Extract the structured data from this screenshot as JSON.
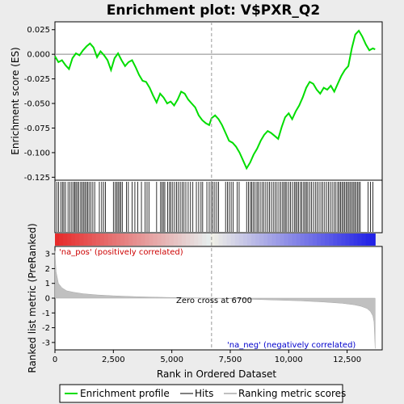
{
  "chart_data": {
    "type": "line",
    "title": "Enrichment plot: V$PXR_Q2",
    "x_axis": {
      "label": "Rank in Ordered Dataset",
      "range": [
        0,
        14000
      ],
      "ticks": [
        0,
        2500,
        5000,
        7500,
        10000,
        12500
      ],
      "tick_labels": [
        "0",
        "2,500",
        "5,000",
        "7,500",
        "10,000",
        "12,500"
      ]
    },
    "es_panel": {
      "ylabel": "Enrichment score (ES)",
      "ylim": [
        -0.128,
        0.033
      ],
      "ticks": [
        0.025,
        0.0,
        -0.025,
        -0.05,
        -0.075,
        -0.1,
        -0.125
      ],
      "tick_labels": [
        "0.025",
        "0.000",
        "-0.025",
        "-0.050",
        "-0.075",
        "-0.100",
        "-0.125"
      ],
      "series": [
        {
          "name": "Enrichment profile",
          "color": "#00dd00",
          "x": [
            0,
            150,
            300,
            450,
            600,
            750,
            900,
            1050,
            1200,
            1350,
            1500,
            1650,
            1800,
            1950,
            2100,
            2250,
            2400,
            2550,
            2700,
            2850,
            3000,
            3150,
            3300,
            3450,
            3600,
            3750,
            3900,
            4050,
            4200,
            4350,
            4500,
            4650,
            4800,
            4950,
            5100,
            5250,
            5400,
            5550,
            5700,
            5850,
            6000,
            6150,
            6300,
            6450,
            6600,
            6700,
            6850,
            7000,
            7150,
            7300,
            7450,
            7600,
            7750,
            7900,
            8050,
            8200,
            8350,
            8500,
            8650,
            8800,
            8950,
            9100,
            9250,
            9400,
            9550,
            9700,
            9850,
            10000,
            10150,
            10300,
            10450,
            10600,
            10750,
            10900,
            11050,
            11200,
            11350,
            11500,
            11650,
            11800,
            11950,
            12100,
            12250,
            12400,
            12550,
            12700,
            12850,
            13000,
            13150,
            13300,
            13450,
            13600,
            13700
          ],
          "y": [
            -0.002,
            -0.008,
            -0.006,
            -0.011,
            -0.015,
            -0.004,
            0.001,
            -0.001,
            0.004,
            0.008,
            0.011,
            0.007,
            -0.003,
            0.003,
            -0.001,
            -0.006,
            -0.016,
            -0.004,
            0.001,
            -0.006,
            -0.012,
            -0.008,
            -0.006,
            -0.013,
            -0.021,
            -0.027,
            -0.028,
            -0.034,
            -0.042,
            -0.049,
            -0.04,
            -0.044,
            -0.05,
            -0.048,
            -0.052,
            -0.046,
            -0.038,
            -0.04,
            -0.046,
            -0.05,
            -0.054,
            -0.062,
            -0.067,
            -0.07,
            -0.072,
            -0.065,
            -0.062,
            -0.066,
            -0.072,
            -0.08,
            -0.088,
            -0.09,
            -0.094,
            -0.1,
            -0.108,
            -0.116,
            -0.11,
            -0.102,
            -0.096,
            -0.088,
            -0.082,
            -0.078,
            -0.08,
            -0.083,
            -0.086,
            -0.074,
            -0.064,
            -0.06,
            -0.066,
            -0.058,
            -0.052,
            -0.044,
            -0.034,
            -0.028,
            -0.03,
            -0.036,
            -0.04,
            -0.034,
            -0.036,
            -0.032,
            -0.038,
            -0.03,
            -0.022,
            -0.016,
            -0.012,
            0.006,
            0.02,
            0.024,
            0.018,
            0.01,
            0.004,
            0.006,
            0.005
          ]
        }
      ]
    },
    "hits_panel": {
      "hit_ranks": [
        80,
        160,
        250,
        320,
        380,
        450,
        560,
        640,
        720,
        790,
        850,
        900,
        960,
        1020,
        1100,
        1160,
        1220,
        1280,
        1340,
        1400,
        1460,
        1540,
        1620,
        1700,
        1900,
        2000,
        2080,
        2160,
        2500,
        2580,
        2640,
        2700,
        2760,
        2820,
        2880,
        3060,
        3140,
        3300,
        3420,
        3540,
        3700,
        3860,
        3940,
        4020,
        4350,
        4520,
        4580,
        4640,
        4700,
        4820,
        4900,
        4960,
        5040,
        5120,
        5200,
        5280,
        5360,
        5440,
        5520,
        5600,
        5700,
        5800,
        5900,
        6050,
        6150,
        6250,
        6320,
        6500,
        6600,
        6680,
        6760,
        6840,
        6920,
        7000,
        7300,
        7380,
        7460,
        7540,
        7620,
        7800,
        7880,
        8200,
        8280,
        8360,
        8420,
        8480,
        8560,
        8640,
        8700,
        8780,
        8860,
        8940,
        9020,
        9100,
        9180,
        9260,
        9340,
        9420,
        9500,
        9580,
        9660,
        9740,
        9800,
        9860,
        9920,
        10000,
        10080,
        10160,
        10240,
        10300,
        10360,
        10420,
        10500,
        10560,
        10640,
        10700,
        10760,
        10820,
        10900,
        10980,
        11060,
        11140,
        11220,
        11300,
        11380,
        11460,
        11540,
        11620,
        11700,
        11780,
        11860,
        11940,
        12020,
        12100,
        12160,
        12220,
        12280,
        12340,
        12400,
        12460,
        12520,
        12580,
        12640,
        12700,
        12760,
        12820,
        12880,
        12940,
        13000,
        13060,
        13400,
        13500,
        13600
      ]
    },
    "ranked_panel": {
      "ylabel": "Ranked list metric (PreRanked)",
      "ylim": [
        -3.5,
        3.5
      ],
      "ticks": [
        3,
        2,
        1,
        0,
        -1,
        -2,
        -3
      ],
      "tick_labels": [
        "3",
        "2",
        "1",
        "0",
        "-1",
        "-2",
        "-3"
      ],
      "x": [
        0,
        50,
        150,
        300,
        500,
        800,
        1200,
        1800,
        2500,
        3500,
        4500,
        5500,
        6700,
        7500,
        8500,
        9500,
        10500,
        11500,
        12300,
        12800,
        13100,
        13350,
        13500,
        13600,
        13650,
        13700
      ],
      "y": [
        3.2,
        1.8,
        1.0,
        0.7,
        0.5,
        0.4,
        0.3,
        0.22,
        0.16,
        0.1,
        0.06,
        0.03,
        0.0,
        -0.04,
        -0.08,
        -0.13,
        -0.18,
        -0.26,
        -0.35,
        -0.45,
        -0.55,
        -0.7,
        -0.9,
        -1.2,
        -1.6,
        -3.4
      ],
      "zero_cross_label": "Zero cross at 6700",
      "zero_cross_rank": 6700,
      "pos_label": "'na_pos' (positively correlated)",
      "neg_label": "'na_neg' (negatively correlated)",
      "pos_color": "#cc0000",
      "neg_color": "#0000cc"
    },
    "legend": {
      "placement": "bottom",
      "entries": [
        {
          "label": "Enrichment profile",
          "color": "#00dd00"
        },
        {
          "label": "Hits",
          "color": "#000000"
        },
        {
          "label": "Ranking metric scores",
          "color": "#c0c0c0"
        }
      ]
    }
  }
}
